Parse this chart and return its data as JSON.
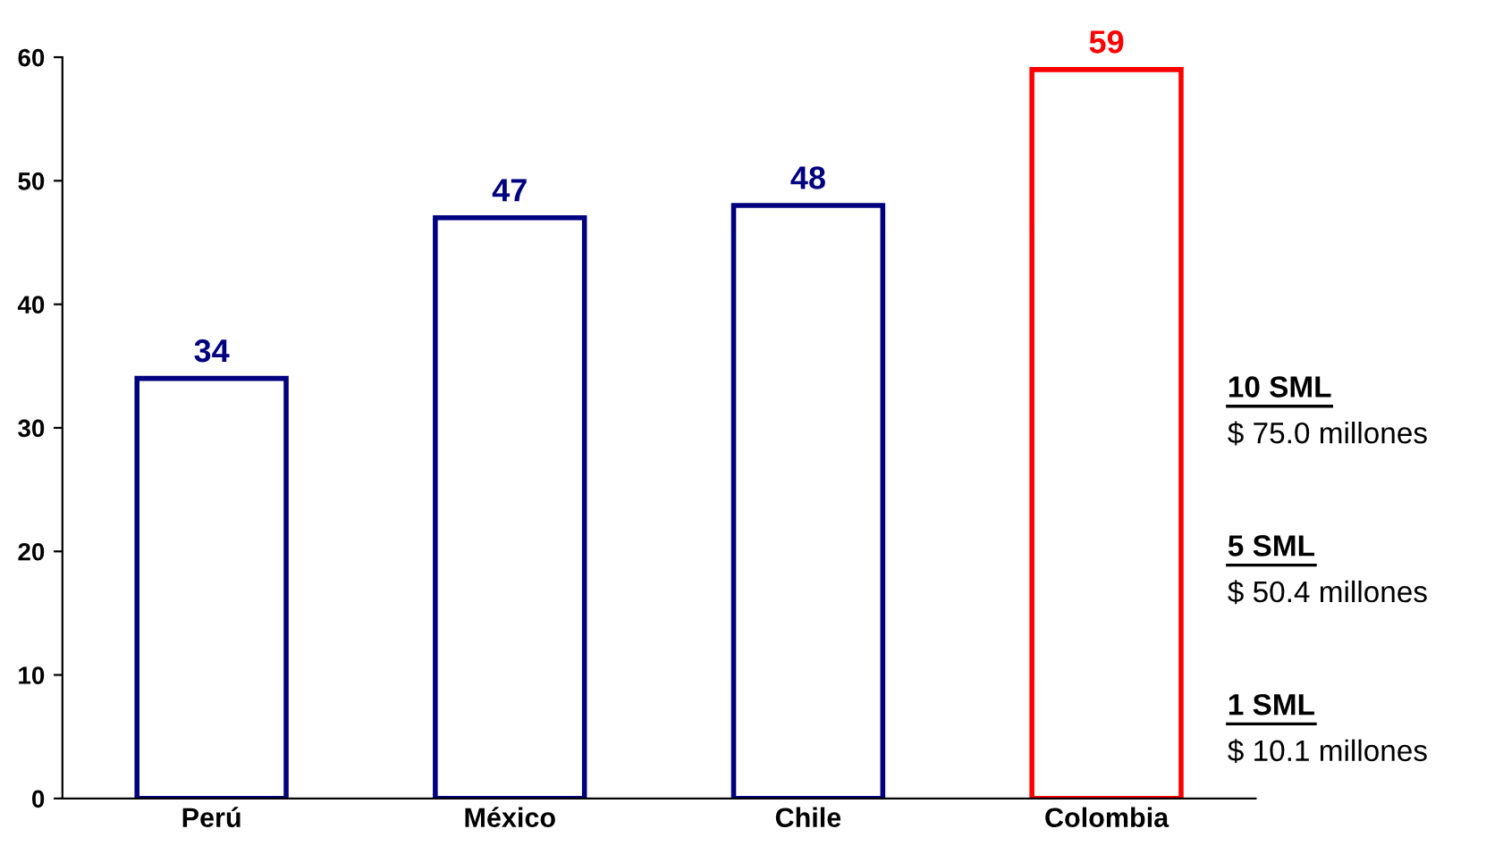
{
  "chart_data": {
    "type": "bar",
    "categories": [
      "Perú",
      "México",
      "Chile",
      "Colombia"
    ],
    "values": [
      34,
      47,
      48,
      59
    ],
    "colors": [
      "#000080",
      "#000080",
      "#000080",
      "#ff0000"
    ],
    "ylim": [
      0,
      60
    ],
    "yticks": [
      0,
      10,
      20,
      30,
      40,
      50,
      60
    ],
    "grid": false,
    "data_labels": true,
    "annotations": [
      "10 SML",
      "$ 75.0 millones",
      "5 SML",
      "$ 50.4 millones",
      "1 SML",
      "$ 10.1 millones"
    ]
  }
}
